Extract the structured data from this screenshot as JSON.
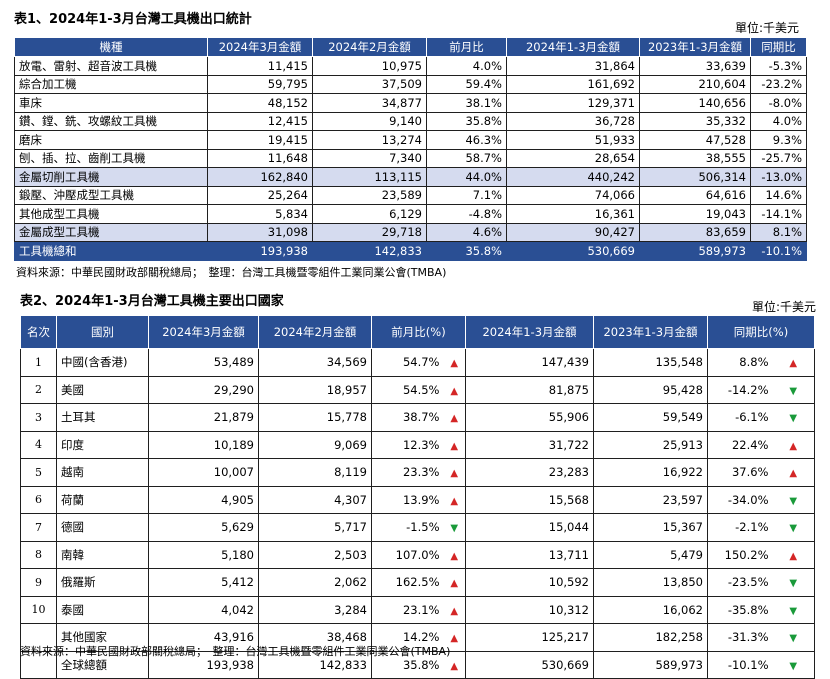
{
  "table1": {
    "title": "表1、2024年1-3月台灣工具機出口統計",
    "unit": "單位:千美元",
    "headers": [
      "機種",
      "2024年3月金額",
      "2024年2月金額",
      "前月比",
      "2024年1-3月金額",
      "2023年1-3月金額",
      "同期比"
    ],
    "rows": [
      {
        "name": "放電、雷射、超音波工具機",
        "mar": "11,415",
        "feb": "10,975",
        "mom": "4.0%",
        "ytd24": "31,864",
        "ytd23": "33,639",
        "yoy": "-5.3%",
        "type": "normal"
      },
      {
        "name": "綜合加工機",
        "mar": "59,795",
        "feb": "37,509",
        "mom": "59.4%",
        "ytd24": "161,692",
        "ytd23": "210,604",
        "yoy": "-23.2%",
        "type": "normal"
      },
      {
        "name": "車床",
        "mar": "48,152",
        "feb": "34,877",
        "mom": "38.1%",
        "ytd24": "129,371",
        "ytd23": "140,656",
        "yoy": "-8.0%",
        "type": "normal"
      },
      {
        "name": "鑽、鏜、銑、攻螺紋工具機",
        "mar": "12,415",
        "feb": "9,140",
        "mom": "35.8%",
        "ytd24": "36,728",
        "ytd23": "35,332",
        "yoy": "4.0%",
        "type": "normal"
      },
      {
        "name": "磨床",
        "mar": "19,415",
        "feb": "13,274",
        "mom": "46.3%",
        "ytd24": "51,933",
        "ytd23": "47,528",
        "yoy": "9.3%",
        "type": "normal"
      },
      {
        "name": "刨、插、拉、齒削工具機",
        "mar": "11,648",
        "feb": "7,340",
        "mom": "58.7%",
        "ytd24": "28,654",
        "ytd23": "38,555",
        "yoy": "-25.7%",
        "type": "normal"
      },
      {
        "name": "金屬切削工具機",
        "mar": "162,840",
        "feb": "113,115",
        "mom": "44.0%",
        "ytd24": "440,242",
        "ytd23": "506,314",
        "yoy": "-13.0%",
        "type": "sub"
      },
      {
        "name": "鍛壓、沖壓成型工具機",
        "mar": "25,264",
        "feb": "23,589",
        "mom": "7.1%",
        "ytd24": "74,066",
        "ytd23": "64,616",
        "yoy": "14.6%",
        "type": "normal"
      },
      {
        "name": "其他成型工具機",
        "mar": "5,834",
        "feb": "6,129",
        "mom": "-4.8%",
        "ytd24": "16,361",
        "ytd23": "19,043",
        "yoy": "-14.1%",
        "type": "normal"
      },
      {
        "name": "金屬成型工具機",
        "mar": "31,098",
        "feb": "29,718",
        "mom": "4.6%",
        "ytd24": "90,427",
        "ytd23": "83,659",
        "yoy": "8.1%",
        "type": "sub"
      },
      {
        "name": "工具機總和",
        "mar": "193,938",
        "feb": "142,833",
        "mom": "35.8%",
        "ytd24": "530,669",
        "ytd23": "589,973",
        "yoy": "-10.1%",
        "type": "total"
      }
    ],
    "source": "資料來源：中華民國財政部關稅總局；　整理：台灣工具機暨零組件工業同業公會(TMBA)"
  },
  "table2": {
    "title": "表2、2024年1-3月台灣工具機主要出口國家",
    "unit": "單位:千美元",
    "headers": [
      "名次",
      "國別",
      "2024年3月金額",
      "2024年2月金額",
      "前月比(%)",
      "2024年1-3月金額",
      "2023年1-3月金額",
      "同期比(%)"
    ],
    "rows": [
      {
        "rank": "1",
        "country": "中國(含香港)",
        "mar": "53,489",
        "feb": "34,569",
        "mom": "54.7%",
        "mom_dir": "up",
        "ytd24": "147,439",
        "ytd23": "135,548",
        "yoy": "8.8%",
        "yoy_dir": "up"
      },
      {
        "rank": "2",
        "country": "美國",
        "mar": "29,290",
        "feb": "18,957",
        "mom": "54.5%",
        "mom_dir": "up",
        "ytd24": "81,875",
        "ytd23": "95,428",
        "yoy": "-14.2%",
        "yoy_dir": "down"
      },
      {
        "rank": "3",
        "country": "土耳其",
        "mar": "21,879",
        "feb": "15,778",
        "mom": "38.7%",
        "mom_dir": "up",
        "ytd24": "55,906",
        "ytd23": "59,549",
        "yoy": "-6.1%",
        "yoy_dir": "down"
      },
      {
        "rank": "4",
        "country": "印度",
        "mar": "10,189",
        "feb": "9,069",
        "mom": "12.3%",
        "mom_dir": "up",
        "ytd24": "31,722",
        "ytd23": "25,913",
        "yoy": "22.4%",
        "yoy_dir": "up"
      },
      {
        "rank": "5",
        "country": "越南",
        "mar": "10,007",
        "feb": "8,119",
        "mom": "23.3%",
        "mom_dir": "up",
        "ytd24": "23,283",
        "ytd23": "16,922",
        "yoy": "37.6%",
        "yoy_dir": "up"
      },
      {
        "rank": "6",
        "country": "荷蘭",
        "mar": "4,905",
        "feb": "4,307",
        "mom": "13.9%",
        "mom_dir": "up",
        "ytd24": "15,568",
        "ytd23": "23,597",
        "yoy": "-34.0%",
        "yoy_dir": "down"
      },
      {
        "rank": "7",
        "country": "德國",
        "mar": "5,629",
        "feb": "5,717",
        "mom": "-1.5%",
        "mom_dir": "down",
        "ytd24": "15,044",
        "ytd23": "15,367",
        "yoy": "-2.1%",
        "yoy_dir": "down"
      },
      {
        "rank": "8",
        "country": "南韓",
        "mar": "5,180",
        "feb": "2,503",
        "mom": "107.0%",
        "mom_dir": "up",
        "ytd24": "13,711",
        "ytd23": "5,479",
        "yoy": "150.2%",
        "yoy_dir": "up"
      },
      {
        "rank": "9",
        "country": "俄羅斯",
        "mar": "5,412",
        "feb": "2,062",
        "mom": "162.5%",
        "mom_dir": "up",
        "ytd24": "10,592",
        "ytd23": "13,850",
        "yoy": "-23.5%",
        "yoy_dir": "down"
      },
      {
        "rank": "10",
        "country": "泰國",
        "mar": "4,042",
        "feb": "3,284",
        "mom": "23.1%",
        "mom_dir": "up",
        "ytd24": "10,312",
        "ytd23": "16,062",
        "yoy": "-35.8%",
        "yoy_dir": "down"
      },
      {
        "rank": "",
        "country": "其他國家",
        "mar": "43,916",
        "feb": "38,468",
        "mom": "14.2%",
        "mom_dir": "up",
        "ytd24": "125,217",
        "ytd23": "182,258",
        "yoy": "-31.3%",
        "yoy_dir": "down"
      },
      {
        "rank": "",
        "country": "全球總額",
        "mar": "193,938",
        "feb": "142,833",
        "mom": "35.8%",
        "mom_dir": "up",
        "ytd24": "530,669",
        "ytd23": "589,973",
        "yoy": "-10.1%",
        "yoy_dir": "down"
      }
    ],
    "source": "資料來源：中華民國財政部關稅總局；　整理：台灣工具機暨零組件工業同業公會(TMBA)"
  },
  "icons": {
    "up": "triangle-up-icon",
    "down": "triangle-down-icon"
  },
  "colors": {
    "header_bg": "#2a4f94",
    "subtotal_bg": "#d5dbef",
    "up": "#d42626",
    "down": "#1a9a3a"
  }
}
